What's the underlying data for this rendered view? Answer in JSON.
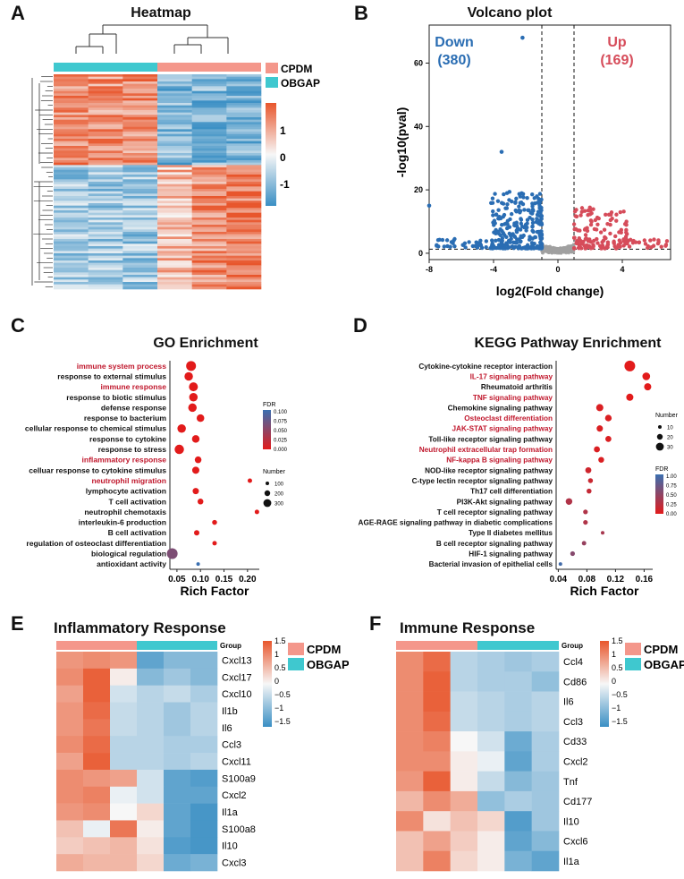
{
  "panels": {
    "A": {
      "letter": "A",
      "title": "Heatmap"
    },
    "B": {
      "letter": "B",
      "title": "Volcano plot"
    },
    "C": {
      "letter": "C",
      "title": "GO Enrichment"
    },
    "D": {
      "letter": "D",
      "title": "KEGG Pathway Enrichment"
    },
    "E": {
      "letter": "E",
      "title": "Inflammatory Response"
    },
    "F": {
      "letter": "F",
      "title": "Immune Response"
    }
  },
  "colors": {
    "cpdm": "#f4978b",
    "obgap": "#3fc8cf",
    "high": "#e8562c",
    "low": "#3a8fc4",
    "mid": "#f7f7f7",
    "down": "#2a6db3",
    "up": "#d64c5a",
    "ns": "#a0a0a0",
    "highlight": "#c0172c"
  },
  "chart_data": [
    {
      "type": "heatmap",
      "title": "Heatmap",
      "groups": [
        "CPDM",
        "OBGAP"
      ],
      "legend_ticks": [
        "1",
        "0",
        "-1"
      ],
      "columns": 6,
      "rows_shown_as_blocks": true
    },
    {
      "type": "scatter",
      "title": "Volcano plot",
      "xlabel": "log2(Fold change)",
      "ylabel": "-log10(pval)",
      "xlim": [
        -8,
        7
      ],
      "ylim": [
        -2,
        72
      ],
      "xticks": [
        "-8",
        "-4",
        "0",
        "4"
      ],
      "yticks": [
        "0",
        "20",
        "40",
        "60"
      ],
      "annotations": [
        {
          "label": "Down",
          "count": "(380)"
        },
        {
          "label": "Up",
          "count": "(169)"
        }
      ],
      "thresholds": {
        "fc": 1,
        "p": 1.3
      },
      "outliers": [
        {
          "x": -2.2,
          "y": 68
        },
        {
          "x": -3.5,
          "y": 32
        },
        {
          "x": -8,
          "y": 15
        }
      ]
    },
    {
      "type": "scatter",
      "title": "GO Enrichment",
      "xlabel": "Rich Factor",
      "xticks": [
        "0.05",
        "0.10",
        "0.15",
        "0.20"
      ],
      "xlim": [
        0.035,
        0.225
      ],
      "terms": [
        {
          "name": "immune system process",
          "x": 0.08,
          "size": 180,
          "fdr": 0.0,
          "highlight": true
        },
        {
          "name": "response to external stimulus",
          "x": 0.075,
          "size": 150,
          "fdr": 0.0,
          "highlight": false
        },
        {
          "name": "immune response",
          "x": 0.085,
          "size": 160,
          "fdr": 0.0,
          "highlight": true
        },
        {
          "name": "response to biotic stimulus",
          "x": 0.085,
          "size": 150,
          "fdr": 0.0,
          "highlight": false
        },
        {
          "name": "defense response",
          "x": 0.083,
          "size": 150,
          "fdr": 0.0,
          "highlight": false
        },
        {
          "name": "response to bacterium",
          "x": 0.1,
          "size": 130,
          "fdr": 0.0,
          "highlight": false
        },
        {
          "name": "cellular response to chemical stimulus",
          "x": 0.06,
          "size": 150,
          "fdr": 0.0,
          "highlight": false
        },
        {
          "name": "response to cytokine",
          "x": 0.09,
          "size": 130,
          "fdr": 0.0,
          "highlight": false
        },
        {
          "name": "response to stress",
          "x": 0.055,
          "size": 170,
          "fdr": 0.0,
          "highlight": false
        },
        {
          "name": "inflammatory response",
          "x": 0.095,
          "size": 110,
          "fdr": 0.0,
          "highlight": true
        },
        {
          "name": "celluar response to cytokine stimulus",
          "x": 0.09,
          "size": 120,
          "fdr": 0.0,
          "highlight": false
        },
        {
          "name": "neutrophil migration",
          "x": 0.205,
          "size": 60,
          "fdr": 0.0,
          "highlight": true
        },
        {
          "name": "lymphocyte activation",
          "x": 0.09,
          "size": 100,
          "fdr": 0.0,
          "highlight": false
        },
        {
          "name": "T cell activation",
          "x": 0.1,
          "size": 90,
          "fdr": 0.0,
          "highlight": false
        },
        {
          "name": "neutrophil chemotaxis",
          "x": 0.22,
          "size": 60,
          "fdr": 0.0,
          "highlight": false
        },
        {
          "name": "interleukin-6 production",
          "x": 0.13,
          "size": 70,
          "fdr": 0.0,
          "highlight": false
        },
        {
          "name": "B cell activation",
          "x": 0.092,
          "size": 80,
          "fdr": 0.0,
          "highlight": false
        },
        {
          "name": "regulation of osteoclast differentiation",
          "x": 0.13,
          "size": 60,
          "fdr": 0.0,
          "highlight": false
        },
        {
          "name": "biological regulation",
          "x": 0.04,
          "size": 200,
          "fdr": 0.06,
          "highlight": false
        },
        {
          "name": "antioxidant activity",
          "x": 0.095,
          "size": 40,
          "fdr": 0.1,
          "highlight": false
        }
      ],
      "fdr_legend": {
        "label": "FDR",
        "ticks": [
          "0.100",
          "0.075",
          "0.050",
          "0.025",
          "0.000"
        ]
      },
      "size_legend": {
        "label": "Number",
        "ticks": [
          "100",
          "200",
          "300"
        ]
      }
    },
    {
      "type": "scatter",
      "title": "KEGG Pathway Enrichment",
      "xlabel": "Rich Factor",
      "xticks": [
        "0.04",
        "0.08",
        "0.12",
        "0.16"
      ],
      "xlim": [
        0.037,
        0.172
      ],
      "terms": [
        {
          "name": "Cytokine-cytokine receptor interaction",
          "x": 0.14,
          "size": 33,
          "fdr": 0.0,
          "highlight": false
        },
        {
          "name": "IL-17 signaling pathway",
          "x": 0.163,
          "size": 22,
          "fdr": 0.0,
          "highlight": true
        },
        {
          "name": "Rheumatoid arthritis",
          "x": 0.165,
          "size": 20,
          "fdr": 0.0,
          "highlight": false
        },
        {
          "name": "TNF signaling pathway",
          "x": 0.14,
          "size": 20,
          "fdr": 0.0,
          "highlight": true
        },
        {
          "name": "Chemokine signaling pathway",
          "x": 0.098,
          "size": 20,
          "fdr": 0.05,
          "highlight": false
        },
        {
          "name": "Osteoclast differentiation",
          "x": 0.11,
          "size": 18,
          "fdr": 0.05,
          "highlight": true
        },
        {
          "name": "JAK-STAT signaling pathway",
          "x": 0.098,
          "size": 17,
          "fdr": 0.05,
          "highlight": true
        },
        {
          "name": "Toll-like receptor signaling pathway",
          "x": 0.11,
          "size": 16,
          "fdr": 0.05,
          "highlight": false
        },
        {
          "name": "Neutrophil extracellular trap formation",
          "x": 0.094,
          "size": 16,
          "fdr": 0.05,
          "highlight": true
        },
        {
          "name": "NF-kappa B signaling pathway",
          "x": 0.1,
          "size": 15,
          "fdr": 0.05,
          "highlight": true
        },
        {
          "name": "NOD-like receptor signaling pathway",
          "x": 0.082,
          "size": 16,
          "fdr": 0.12,
          "highlight": false
        },
        {
          "name": "C-type lectin receptor signaling pathway",
          "x": 0.085,
          "size": 12,
          "fdr": 0.15,
          "highlight": false
        },
        {
          "name": "Th17 cell differentiation",
          "x": 0.083,
          "size": 12,
          "fdr": 0.18,
          "highlight": false
        },
        {
          "name": "PI3K-Akt signaling pathway",
          "x": 0.055,
          "size": 18,
          "fdr": 0.3,
          "highlight": false
        },
        {
          "name": "T cell receptor signaling pathway",
          "x": 0.078,
          "size": 11,
          "fdr": 0.3,
          "highlight": false
        },
        {
          "name": "AGE-RAGE signaling pathway in diabetic complications",
          "x": 0.078,
          "size": 11,
          "fdr": 0.3,
          "highlight": false
        },
        {
          "name": "Type II diabetes mellitus",
          "x": 0.102,
          "size": 7,
          "fdr": 0.35,
          "highlight": false
        },
        {
          "name": "B cell receptor signaling pathway",
          "x": 0.076,
          "size": 10,
          "fdr": 0.45,
          "highlight": false
        },
        {
          "name": "HIF-1 signaling pathway",
          "x": 0.06,
          "size": 11,
          "fdr": 0.55,
          "highlight": false
        },
        {
          "name": "Bacterial invasion of epithelial cells",
          "x": 0.043,
          "size": 7,
          "fdr": 0.95,
          "highlight": false
        }
      ],
      "size_legend": {
        "label": "Number",
        "ticks": [
          "10",
          "20",
          "30"
        ]
      },
      "fdr_legend": {
        "label": "FDR",
        "ticks": [
          "1.00",
          "0.75",
          "0.50",
          "0.25",
          "0.00"
        ]
      }
    },
    {
      "type": "heatmap",
      "title": "Inflammatory Response",
      "groups": [
        "CPDM",
        "OBGAP"
      ],
      "group_label": "Group",
      "legend_ticks": [
        "1.5",
        "1",
        "0.5",
        "0",
        "−0.5",
        "−1",
        "−1.5"
      ],
      "rows": [
        "Cxcl13",
        "Cxcl17",
        "Cxcl10",
        "Il1b",
        "Il6",
        "Ccl3",
        "Cxcl11",
        "S100a9",
        "Cxcl2",
        "Il1a",
        "S100a8",
        "Il10",
        "Cxcl3"
      ],
      "values": [
        [
          0.9,
          1.0,
          0.9,
          -1.2,
          -0.9,
          -0.9
        ],
        [
          1.0,
          1.4,
          0.1,
          -0.9,
          -0.7,
          -0.9
        ],
        [
          0.8,
          1.4,
          -0.3,
          -0.5,
          -0.4,
          -0.6
        ],
        [
          0.9,
          1.3,
          -0.4,
          -0.5,
          -0.7,
          -0.5
        ],
        [
          0.9,
          1.2,
          -0.4,
          -0.5,
          -0.7,
          -0.5
        ],
        [
          1.0,
          1.3,
          -0.5,
          -0.5,
          -0.6,
          -0.6
        ],
        [
          0.8,
          1.4,
          -0.5,
          -0.5,
          -0.6,
          -0.5
        ],
        [
          1.0,
          0.9,
          0.8,
          -0.3,
          -1.2,
          -1.3
        ],
        [
          1.0,
          1.1,
          -0.1,
          -0.3,
          -1.2,
          -1.2
        ],
        [
          0.9,
          1.0,
          0.0,
          0.3,
          -1.2,
          -1.4
        ],
        [
          0.5,
          -0.1,
          1.2,
          0.1,
          -1.2,
          -1.4
        ],
        [
          0.4,
          0.5,
          0.6,
          0.2,
          -1.3,
          -1.4
        ],
        [
          0.7,
          0.6,
          0.6,
          0.3,
          -1.1,
          -1.0
        ]
      ]
    },
    {
      "type": "heatmap",
      "title": "Immune Response",
      "groups": [
        "CPDM",
        "OBGAP"
      ],
      "group_label": "Group",
      "legend_ticks": [
        "1.5",
        "1",
        "0.5",
        "0",
        "−0.5",
        "−1",
        "−1.5"
      ],
      "rows": [
        "Ccl4",
        "Cd86",
        "Il6",
        "Ccl3",
        "Cd33",
        "Cxcl2",
        "Tnf",
        "Cd177",
        "Il10",
        "Cxcl6",
        "Il1a"
      ],
      "values": [
        [
          1.0,
          1.3,
          -0.5,
          -0.6,
          -0.7,
          -0.6
        ],
        [
          1.0,
          1.4,
          -0.5,
          -0.6,
          -0.6,
          -0.8
        ],
        [
          1.0,
          1.4,
          -0.4,
          -0.5,
          -0.6,
          -0.5
        ],
        [
          1.0,
          1.3,
          -0.4,
          -0.5,
          -0.6,
          -0.5
        ],
        [
          1.0,
          1.1,
          0.0,
          -0.3,
          -1.1,
          -0.6
        ],
        [
          1.0,
          1.0,
          0.1,
          -0.1,
          -1.2,
          -0.6
        ],
        [
          0.9,
          1.4,
          0.1,
          -0.4,
          -0.9,
          -0.7
        ],
        [
          0.6,
          1.0,
          0.7,
          -0.8,
          -0.6,
          -0.7
        ],
        [
          1.0,
          0.2,
          0.5,
          0.3,
          -1.3,
          -0.7
        ],
        [
          0.5,
          0.8,
          0.4,
          0.1,
          -1.2,
          -0.9
        ],
        [
          0.5,
          1.1,
          0.3,
          0.1,
          -1.0,
          -1.2
        ]
      ]
    }
  ]
}
